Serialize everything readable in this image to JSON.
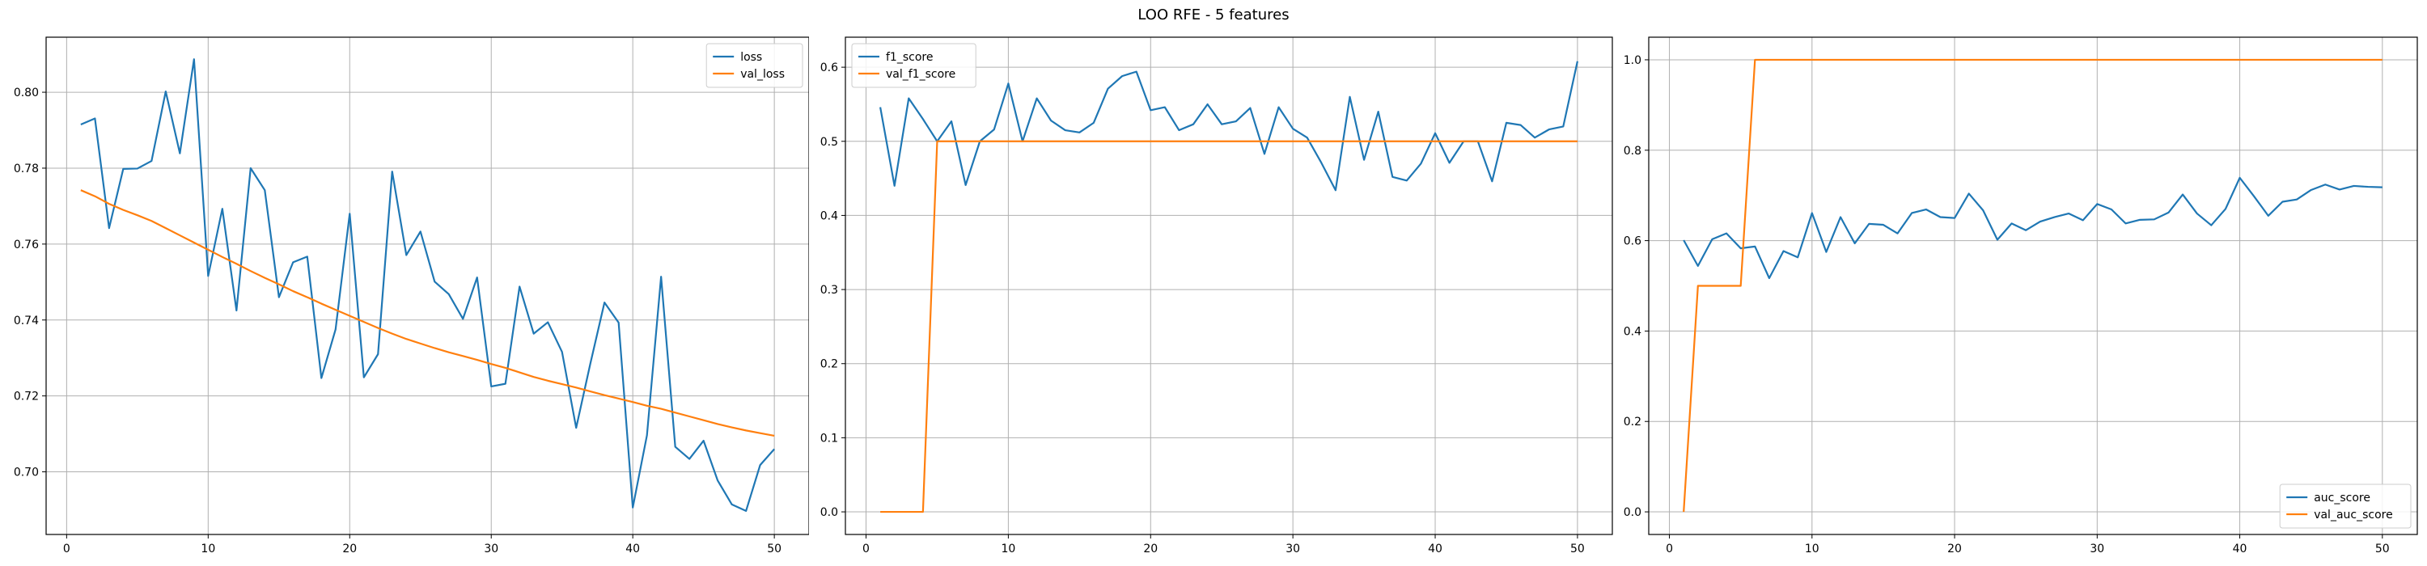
{
  "figure": {
    "title": "LOO RFE - 5 features"
  },
  "colors": {
    "series1": "#1f77b4",
    "series2": "#ff7f0e",
    "grid": "#b0b0b0",
    "axis": "#000000"
  },
  "chart_data": [
    {
      "type": "line",
      "title": "",
      "xlabel": "",
      "ylabel": "",
      "grid": true,
      "legend": "top-right",
      "xlim": [
        -1.45,
        52.45
      ],
      "ylim": [
        0.6835,
        0.8145
      ],
      "xticks": [
        0,
        10,
        20,
        30,
        40,
        50
      ],
      "xtick_labels": [
        "0",
        "10",
        "20",
        "30",
        "40",
        "50"
      ],
      "yticks": [
        0.7,
        0.72,
        0.74,
        0.76,
        0.78,
        0.8
      ],
      "ytick_labels": [
        "0.70",
        "0.72",
        "0.74",
        "0.76",
        "0.78",
        "0.80"
      ],
      "x": [
        1,
        2,
        3,
        4,
        5,
        6,
        7,
        8,
        9,
        10,
        11,
        12,
        13,
        14,
        15,
        16,
        17,
        18,
        19,
        20,
        21,
        22,
        23,
        24,
        25,
        26,
        27,
        28,
        29,
        30,
        31,
        32,
        33,
        34,
        35,
        36,
        37,
        38,
        39,
        40,
        41,
        42,
        43,
        44,
        45,
        46,
        47,
        48,
        49,
        50
      ],
      "series": [
        {
          "name": "loss",
          "values": [
            0.7915,
            0.7931,
            0.7642,
            0.7798,
            0.7799,
            0.7819,
            0.8002,
            0.7839,
            0.8087,
            0.7516,
            0.7693,
            0.7425,
            0.78,
            0.7742,
            0.746,
            0.7552,
            0.7567,
            0.7247,
            0.7375,
            0.768,
            0.7249,
            0.731,
            0.7791,
            0.7571,
            0.7633,
            0.7501,
            0.7468,
            0.7403,
            0.7512,
            0.7225,
            0.7232,
            0.7488,
            0.7364,
            0.7394,
            0.7316,
            0.7116,
            0.7285,
            0.7446,
            0.7393,
            0.6906,
            0.7096,
            0.7514,
            0.7066,
            0.7034,
            0.7082,
            0.6977,
            0.6914,
            0.6897,
            0.7018,
            0.706
          ]
        },
        {
          "name": "val_loss",
          "values": [
            0.7742,
            0.7726,
            0.7706,
            0.769,
            0.7676,
            0.7661,
            0.7642,
            0.7623,
            0.7604,
            0.7585,
            0.7566,
            0.7548,
            0.7529,
            0.7511,
            0.7494,
            0.7476,
            0.746,
            0.7443,
            0.7427,
            0.7411,
            0.7395,
            0.7379,
            0.7364,
            0.735,
            0.7338,
            0.7326,
            0.7315,
            0.7305,
            0.7295,
            0.7284,
            0.7274,
            0.7262,
            0.725,
            0.724,
            0.7231,
            0.7222,
            0.7212,
            0.7202,
            0.7193,
            0.7184,
            0.7174,
            0.7166,
            0.7156,
            0.7146,
            0.7136,
            0.7126,
            0.7117,
            0.7109,
            0.7102,
            0.7095
          ]
        }
      ]
    },
    {
      "type": "line",
      "title": "",
      "xlabel": "",
      "ylabel": "",
      "grid": true,
      "legend": "top-left",
      "xlim": [
        -1.45,
        52.45
      ],
      "ylim": [
        -0.0305,
        0.6405
      ],
      "xticks": [
        0,
        10,
        20,
        30,
        40,
        50
      ],
      "xtick_labels": [
        "0",
        "10",
        "20",
        "30",
        "40",
        "50"
      ],
      "yticks": [
        0.0,
        0.1,
        0.2,
        0.3,
        0.4,
        0.5,
        0.6
      ],
      "ytick_labels": [
        "0.0",
        "0.1",
        "0.2",
        "0.3",
        "0.4",
        "0.5",
        "0.6"
      ],
      "x": [
        1,
        2,
        3,
        4,
        5,
        6,
        7,
        8,
        9,
        10,
        11,
        12,
        13,
        14,
        15,
        16,
        17,
        18,
        19,
        20,
        21,
        22,
        23,
        24,
        25,
        26,
        27,
        28,
        29,
        30,
        31,
        32,
        33,
        34,
        35,
        36,
        37,
        38,
        39,
        40,
        41,
        42,
        43,
        44,
        45,
        46,
        47,
        48,
        49,
        50
      ],
      "series": [
        {
          "name": "f1_score",
          "values": [
            0.546,
            0.44,
            0.558,
            0.53,
            0.5,
            0.527,
            0.441,
            0.5,
            0.516,
            0.578,
            0.5,
            0.558,
            0.528,
            0.515,
            0.512,
            0.525,
            0.571,
            0.588,
            0.594,
            0.542,
            0.546,
            0.515,
            0.523,
            0.55,
            0.523,
            0.527,
            0.545,
            0.483,
            0.546,
            0.517,
            0.505,
            0.471,
            0.434,
            0.56,
            0.475,
            0.54,
            0.452,
            0.447,
            0.47,
            0.511,
            0.471,
            0.5,
            0.5,
            0.446,
            0.525,
            0.522,
            0.505,
            0.516,
            0.52,
            0.608
          ]
        },
        {
          "name": "val_f1_score",
          "values": [
            0,
            0,
            0,
            0,
            0.5,
            0.5,
            0.5,
            0.5,
            0.5,
            0.5,
            0.5,
            0.5,
            0.5,
            0.5,
            0.5,
            0.5,
            0.5,
            0.5,
            0.5,
            0.5,
            0.5,
            0.5,
            0.5,
            0.5,
            0.5,
            0.5,
            0.5,
            0.5,
            0.5,
            0.5,
            0.5,
            0.5,
            0.5,
            0.5,
            0.5,
            0.5,
            0.5,
            0.5,
            0.5,
            0.5,
            0.5,
            0.5,
            0.5,
            0.5,
            0.5,
            0.5,
            0.5,
            0.5,
            0.5,
            0.5
          ]
        }
      ]
    },
    {
      "type": "line",
      "title": "",
      "xlabel": "",
      "ylabel": "",
      "grid": true,
      "legend": "bottom-right",
      "xlim": [
        -1.45,
        52.45
      ],
      "ylim": [
        -0.05,
        1.05
      ],
      "xticks": [
        0,
        10,
        20,
        30,
        40,
        50
      ],
      "xtick_labels": [
        "0",
        "10",
        "20",
        "30",
        "40",
        "50"
      ],
      "yticks": [
        0.0,
        0.2,
        0.4,
        0.6,
        0.8,
        1.0
      ],
      "ytick_labels": [
        "0.0",
        "0.2",
        "0.4",
        "0.6",
        "0.8",
        "1.0"
      ],
      "x": [
        1,
        2,
        3,
        4,
        5,
        6,
        7,
        8,
        9,
        10,
        11,
        12,
        13,
        14,
        15,
        16,
        17,
        18,
        19,
        20,
        21,
        22,
        23,
        24,
        25,
        26,
        27,
        28,
        29,
        30,
        31,
        32,
        33,
        34,
        35,
        36,
        37,
        38,
        39,
        40,
        41,
        42,
        43,
        44,
        45,
        46,
        47,
        48,
        49,
        50
      ],
      "series": [
        {
          "name": "auc_score",
          "values": [
            0.601,
            0.544,
            0.603,
            0.616,
            0.583,
            0.587,
            0.517,
            0.577,
            0.563,
            0.661,
            0.575,
            0.652,
            0.594,
            0.637,
            0.635,
            0.616,
            0.661,
            0.669,
            0.652,
            0.65,
            0.704,
            0.667,
            0.602,
            0.638,
            0.623,
            0.642,
            0.652,
            0.66,
            0.645,
            0.681,
            0.669,
            0.638,
            0.646,
            0.647,
            0.662,
            0.702,
            0.66,
            0.634,
            0.67,
            0.739,
            0.698,
            0.655,
            0.686,
            0.691,
            0.712,
            0.724,
            0.713,
            0.721,
            0.719,
            0.718
          ]
        },
        {
          "name": "val_auc_score",
          "values": [
            0,
            0.5,
            0.5,
            0.5,
            0.5,
            1,
            1,
            1,
            1,
            1,
            1,
            1,
            1,
            1,
            1,
            1,
            1,
            1,
            1,
            1,
            1,
            1,
            1,
            1,
            1,
            1,
            1,
            1,
            1,
            1,
            1,
            1,
            1,
            1,
            1,
            1,
            1,
            1,
            1,
            1,
            1,
            1,
            1,
            1,
            1,
            1,
            1,
            1,
            1,
            1
          ]
        }
      ]
    }
  ]
}
